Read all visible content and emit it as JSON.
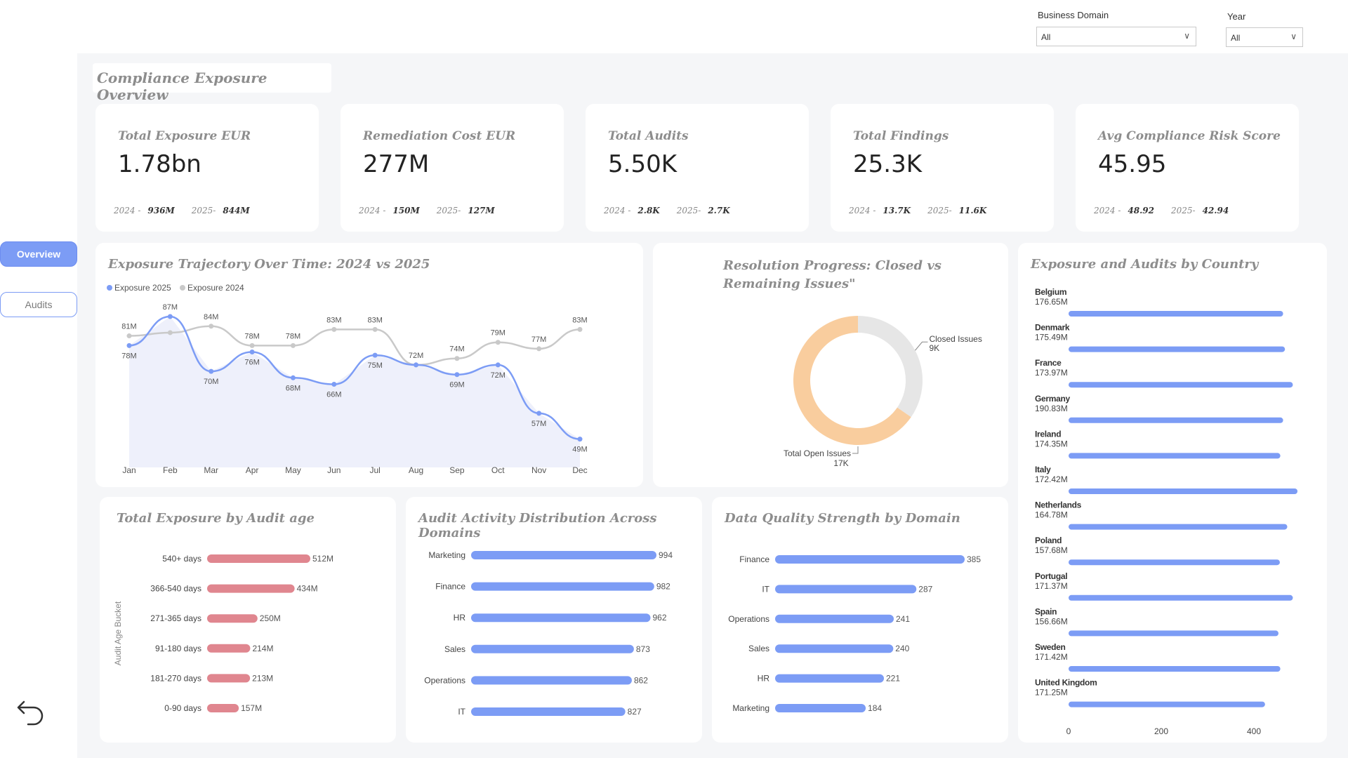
{
  "page_title": "Compliance Exposure Overview",
  "nav": {
    "overview": "Overview",
    "audits": "Audits",
    "back_icon": "back-arrow-icon"
  },
  "filters": {
    "domain": {
      "label": "Business Domain",
      "value": "All"
    },
    "year": {
      "label": "Year",
      "value": "All"
    }
  },
  "kpis": [
    {
      "title": "Total Exposure EUR",
      "value": "1.78bn",
      "y2024_label": "2024 -",
      "y2024": "936M",
      "y2025_label": "2025-",
      "y2025": "844M"
    },
    {
      "title": "Remediation Cost EUR",
      "value": "277M",
      "y2024_label": "2024 -",
      "y2024": "150M",
      "y2025_label": "2025-",
      "y2025": "127M"
    },
    {
      "title": "Total Audits",
      "value": "5.50K",
      "y2024_label": "2024 -",
      "y2024": "2.8K",
      "y2025_label": "2025-",
      "y2025": "2.7K"
    },
    {
      "title": "Total Findings",
      "value": "25.3K",
      "y2024_label": "2024 -",
      "y2024": "13.7K",
      "y2025_label": "2025-",
      "y2025": "11.6K"
    },
    {
      "title": "Avg Compliance Risk Score",
      "value": "45.95",
      "y2024_label": "2024 -",
      "y2024": "48.92",
      "y2025_label": "2025-",
      "y2025": "42.94"
    }
  ],
  "colors": {
    "blue": "#7c9cf5",
    "grey": "#c9c9c9",
    "peach": "#f9cd9e",
    "red": "#e0868f",
    "area": "#eef0fb"
  },
  "chart_data": [
    {
      "type": "line",
      "title": "Exposure Trajectory Over Time: 2024 vs 2025",
      "categories": [
        "Jan",
        "Feb",
        "Mar",
        "Apr",
        "May",
        "Jun",
        "Jul",
        "Aug",
        "Sep",
        "Oct",
        "Nov",
        "Dec"
      ],
      "series": [
        {
          "name": "Exposure 2025",
          "values": [
            78,
            87,
            70,
            76,
            68,
            66,
            75,
            72,
            69,
            72,
            57,
            49
          ],
          "labels": [
            "78M",
            "87M",
            "70M",
            "76M",
            "68M",
            "66M",
            "75M",
            "72M",
            "69M",
            "72M",
            "57M",
            "49M"
          ]
        },
        {
          "name": "Exposure 2024",
          "values": [
            81,
            82,
            84,
            78,
            78,
            83,
            83,
            72,
            74,
            79,
            77,
            83
          ],
          "labels": [
            "81M",
            "",
            "84M",
            "78M",
            "78M",
            "83M",
            "83M",
            "",
            "74M",
            "79M",
            "77M",
            "83M"
          ]
        }
      ],
      "ylim": [
        45,
        92
      ],
      "legend": "top-left"
    },
    {
      "type": "pie",
      "title": "Resolution Progress: Closed vs Remaining Issues\"",
      "slices": [
        {
          "name": "Closed Issues",
          "value": 9,
          "label": "9K"
        },
        {
          "name": "Total Open Issues",
          "value": 17,
          "label": "17K"
        }
      ]
    },
    {
      "type": "bar",
      "title": "Exposure and Audits by Country",
      "categories": [
        "Belgium",
        "Denmark",
        "France",
        "Germany",
        "Ireland",
        "Italy",
        "Netherlands",
        "Poland",
        "Portugal",
        "Spain",
        "Sweden",
        "United Kingdom"
      ],
      "exposure_labels": [
        "176.65M",
        "175.49M",
        "173.97M",
        "190.83M",
        "174.35M",
        "172.42M",
        "164.78M",
        "157.68M",
        "171.37M",
        "156.66M",
        "171.42M",
        "171.25M"
      ],
      "values": [
        463,
        467,
        484,
        463,
        457,
        494,
        472,
        456,
        484,
        453,
        457,
        424
      ],
      "xticks": [
        0,
        200,
        400
      ],
      "xlim": [
        0,
        500
      ]
    },
    {
      "type": "bar",
      "title": "Total Exposure by Audit age",
      "ylabel": "Audit Age Bucket",
      "categories": [
        "540+ days",
        "366-540 days",
        "271-365 days",
        "91-180 days",
        "181-270 days",
        "0-90 days"
      ],
      "values": [
        512,
        434,
        250,
        214,
        213,
        157
      ],
      "labels": [
        "512M",
        "434M",
        "250M",
        "214M",
        "213M",
        "157M"
      ]
    },
    {
      "type": "bar",
      "title": "Audit Activity Distribution Across Domains",
      "categories": [
        "Marketing",
        "Finance",
        "HR",
        "Sales",
        "Operations",
        "IT"
      ],
      "values": [
        994,
        982,
        962,
        873,
        862,
        827
      ]
    },
    {
      "type": "bar",
      "title": "Data Quality Strength by Domain",
      "categories": [
        "Finance",
        "IT",
        "Operations",
        "Sales",
        "HR",
        "Marketing"
      ],
      "values": [
        385,
        287,
        241,
        240,
        221,
        184
      ]
    }
  ]
}
